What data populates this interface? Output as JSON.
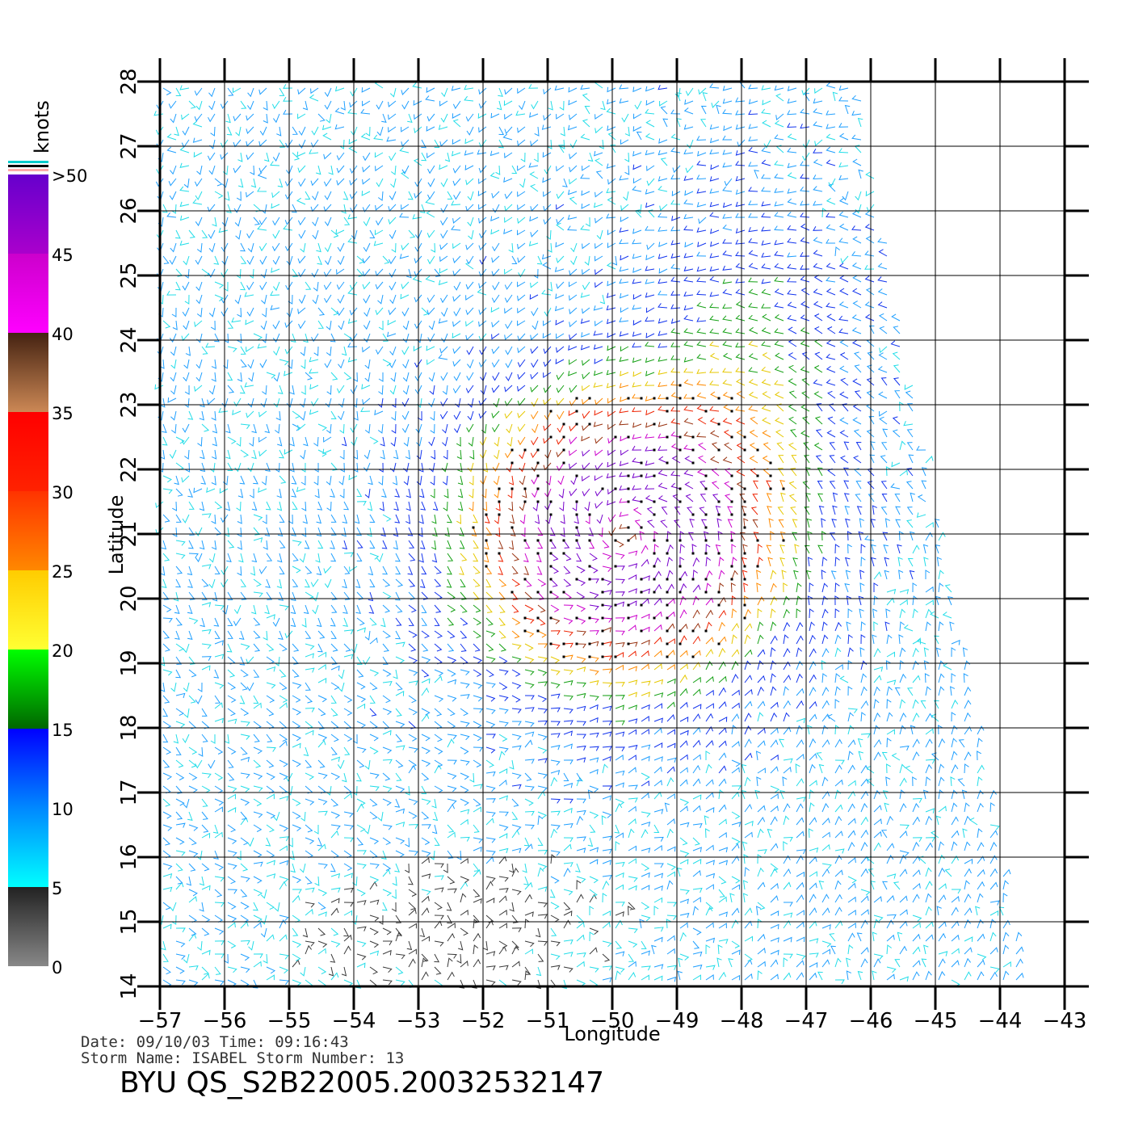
{
  "chart_data": {
    "type": "wind_vector_map",
    "xlabel": "Longitude",
    "ylabel": "Latitude",
    "xlim": [
      -57,
      -43
    ],
    "ylim": [
      14,
      28
    ],
    "x_ticks": [
      -57,
      -56,
      -55,
      -54,
      -53,
      -52,
      -51,
      -50,
      -49,
      -48,
      -47,
      -46,
      -45,
      -44,
      -43
    ],
    "y_ticks": [
      14,
      15,
      16,
      17,
      18,
      19,
      20,
      21,
      22,
      23,
      24,
      25,
      26,
      27,
      28
    ],
    "grid": true,
    "storm_center": {
      "lon": -49.8,
      "lat": 21.0
    },
    "swath_east_edge": [
      {
        "lat": 28,
        "lon": -46.2
      },
      {
        "lat": 14,
        "lon": -43.6
      }
    ],
    "colorbar": {
      "unit": "knots",
      "labels": [
        "0",
        "5",
        "10",
        "15",
        "20",
        "25",
        "30",
        "35",
        "40",
        "45",
        ">50"
      ],
      "bands": [
        {
          "from": 0,
          "to": 5,
          "colors": [
            "#888888",
            "#222222"
          ]
        },
        {
          "from": 5,
          "to": 10,
          "colors": [
            "#00ffff",
            "#0088ff"
          ]
        },
        {
          "from": 10,
          "to": 15,
          "colors": [
            "#0088ff",
            "#0000ff"
          ]
        },
        {
          "from": 15,
          "to": 20,
          "colors": [
            "#006600",
            "#00ff00"
          ]
        },
        {
          "from": 20,
          "to": 25,
          "colors": [
            "#ffff33",
            "#ffcc00"
          ]
        },
        {
          "from": 25,
          "to": 30,
          "colors": [
            "#ff8800",
            "#ff3300"
          ]
        },
        {
          "from": 30,
          "to": 35,
          "colors": [
            "#ff2200",
            "#ff0000"
          ]
        },
        {
          "from": 35,
          "to": 40,
          "colors": [
            "#cc8855",
            "#442211"
          ]
        },
        {
          "from": 40,
          "to": 45,
          "colors": [
            "#ff00ff",
            "#cc00cc"
          ]
        },
        {
          "from": 45,
          "to": 50,
          "colors": [
            "#aa00cc",
            "#6600cc"
          ]
        }
      ],
      "top_marks": [
        "#00cccc",
        "#000000",
        "#ffaaaa"
      ]
    }
  },
  "footer": {
    "date_line": "Date: 09/10/03   Time: 09:16:43",
    "storm_line": "Storm  Name: ISABEL    Storm  Number: 13",
    "product_id": "BYU  QS_S2B22005.20032532147"
  }
}
